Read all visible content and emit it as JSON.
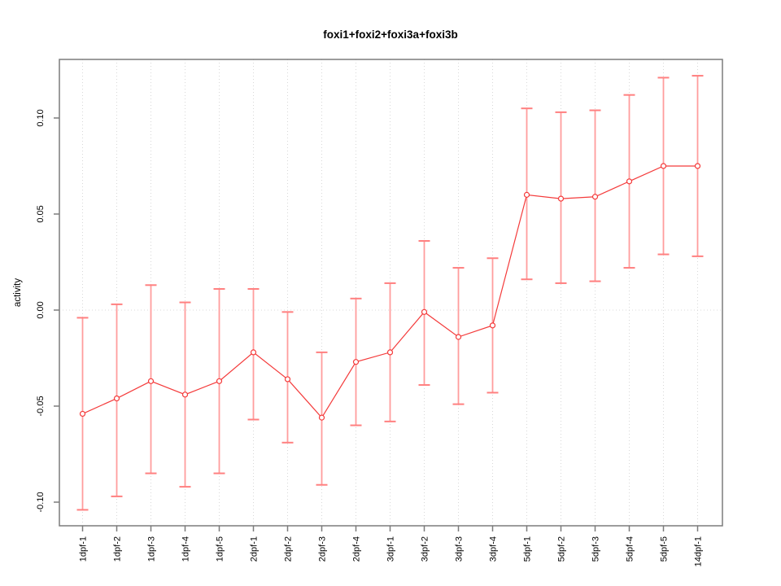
{
  "chart_data": {
    "type": "line",
    "title": "foxi1+foxi2+foxi3a+foxi3b",
    "ylabel": "activity",
    "xlabel": "",
    "categories": [
      "1dpf-1",
      "1dpf-2",
      "1dpf-3",
      "1dpf-4",
      "1dpf-5",
      "2dpf-1",
      "2dpf-2",
      "2dpf-3",
      "2dpf-4",
      "3dpf-1",
      "3dpf-2",
      "3dpf-3",
      "3dpf-4",
      "5dpf-1",
      "5dpf-2",
      "5dpf-3",
      "5dpf-4",
      "5dpf-5",
      "14dpf-1"
    ],
    "series": [
      {
        "name": "activity",
        "values": [
          -0.054,
          -0.046,
          -0.037,
          -0.044,
          -0.037,
          -0.022,
          -0.036,
          -0.056,
          -0.027,
          -0.022,
          -0.001,
          -0.014,
          -0.008,
          0.06,
          0.058,
          0.059,
          0.067,
          0.075,
          0.075
        ],
        "error_upper": [
          -0.004,
          0.003,
          0.013,
          0.004,
          0.011,
          0.011,
          -0.001,
          -0.022,
          0.006,
          0.014,
          0.036,
          0.022,
          0.027,
          0.105,
          0.103,
          0.104,
          0.112,
          0.121,
          0.122
        ],
        "error_lower": [
          -0.104,
          -0.097,
          -0.085,
          -0.092,
          -0.085,
          -0.057,
          -0.069,
          -0.091,
          -0.06,
          -0.058,
          -0.039,
          -0.049,
          -0.043,
          0.016,
          0.014,
          0.015,
          0.022,
          0.029,
          0.028
        ]
      }
    ],
    "yticks": [
      {
        "value": -0.1,
        "label": "-0.10"
      },
      {
        "value": -0.05,
        "label": "-0.05"
      },
      {
        "value": 0.0,
        "label": "0.00"
      },
      {
        "value": 0.05,
        "label": "0.05"
      },
      {
        "value": 0.1,
        "label": "0.10"
      }
    ],
    "ylim": [
      -0.1123,
      0.1305
    ],
    "zero_line": 0,
    "grid": {
      "vertical": "dotted line at every category",
      "horizontal": "dotted line at zero only"
    },
    "point_style": "open-circle",
    "legend": ""
  },
  "colors": {
    "series": "#f43b3b",
    "error_bar": "#ff9d9d",
    "error_cap": "#ff8080",
    "axis": "#7c7c7c",
    "grid": "#d8d8d8",
    "text": "#000000",
    "background": "#ffffff"
  }
}
